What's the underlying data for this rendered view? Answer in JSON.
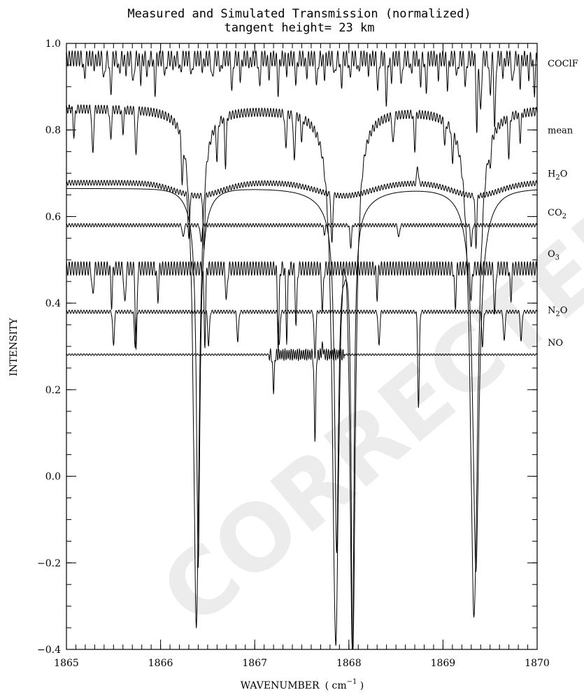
{
  "chart_data": {
    "type": "line",
    "title": "Measured and Simulated Transmission (normalized)",
    "subtitle": "tangent height= 23 km",
    "xlabel": "WAVENUMBER",
    "xlabel_unit_open": "( cm",
    "xlabel_unit_exp": "−1",
    "xlabel_unit_close": " )",
    "ylabel": "INTENSITY",
    "xlim": [
      1865,
      1870
    ],
    "ylim": [
      -0.4,
      1.0
    ],
    "x_ticks": [
      "1865",
      "1866",
      "1867",
      "1868",
      "1869",
      "1870"
    ],
    "y_ticks": [
      "−0.4",
      "−0.2",
      "0.0",
      "0.2",
      "0.4",
      "0.6",
      "0.8",
      "1.0"
    ],
    "grid": false,
    "legend": "labels at right end of each trace",
    "watermark": "CORRECTED PROOF",
    "series": [
      {
        "name": "COClF",
        "label_parts": [
          "COClF"
        ],
        "baseline": 0.965,
        "lines": [
          [
            1865.19,
            0.92
          ],
          [
            1865.3,
            0.95
          ],
          [
            1865.4,
            0.91
          ],
          [
            1865.47,
            0.88
          ],
          [
            1865.56,
            0.93
          ],
          [
            1865.63,
            0.94
          ],
          [
            1865.71,
            0.9
          ],
          [
            1865.79,
            0.92
          ],
          [
            1865.86,
            0.93
          ],
          [
            1865.94,
            0.89
          ],
          [
            1866.05,
            0.92
          ],
          [
            1866.14,
            0.95
          ],
          [
            1866.21,
            0.93
          ],
          [
            1866.33,
            0.92
          ],
          [
            1866.45,
            0.94
          ],
          [
            1866.55,
            0.91
          ],
          [
            1866.64,
            0.93
          ],
          [
            1866.76,
            0.89
          ],
          [
            1866.85,
            0.92
          ],
          [
            1866.95,
            0.95
          ],
          [
            1867.05,
            0.9
          ],
          [
            1867.15,
            0.93
          ],
          [
            1867.25,
            0.89
          ],
          [
            1867.34,
            0.94
          ],
          [
            1867.44,
            0.91
          ],
          [
            1867.55,
            0.93
          ],
          [
            1867.66,
            0.9
          ],
          [
            1867.74,
            0.93
          ],
          [
            1867.85,
            0.92
          ],
          [
            1867.92,
            0.9
          ],
          [
            1868.01,
            0.92
          ],
          [
            1868.1,
            0.93
          ],
          [
            1868.21,
            0.94
          ],
          [
            1868.31,
            0.89
          ],
          [
            1868.4,
            0.86
          ],
          [
            1868.45,
            0.92
          ],
          [
            1868.56,
            0.9
          ],
          [
            1868.66,
            0.93
          ],
          [
            1868.76,
            0.91
          ],
          [
            1868.82,
            0.89
          ],
          [
            1868.95,
            0.93
          ],
          [
            1869.05,
            0.9
          ],
          [
            1869.15,
            0.92
          ],
          [
            1869.24,
            0.9
          ],
          [
            1869.36,
            0.8
          ],
          [
            1869.4,
            0.83
          ],
          [
            1869.5,
            0.88
          ],
          [
            1869.55,
            0.8
          ],
          [
            1869.64,
            0.93
          ],
          [
            1869.74,
            0.9
          ],
          [
            1869.82,
            0.91
          ],
          [
            1869.91,
            0.93
          ],
          [
            1869.97,
            0.89
          ]
        ],
        "wiggle": 0.018
      },
      {
        "name": "mean",
        "label_parts": [
          "mean"
        ],
        "baseline": 0.85,
        "lines": [
          [
            1865.08,
            0.79
          ],
          [
            1865.28,
            0.74
          ],
          [
            1865.47,
            0.78
          ],
          [
            1865.6,
            0.8
          ],
          [
            1865.74,
            0.74
          ],
          [
            1866.23,
            0.75
          ],
          [
            1866.6,
            0.77
          ],
          [
            1866.69,
            0.74
          ],
          [
            1867.33,
            0.77
          ],
          [
            1867.42,
            0.74
          ],
          [
            1867.5,
            0.8
          ],
          [
            1868.47,
            0.78
          ],
          [
            1868.7,
            0.77
          ],
          [
            1869.02,
            0.8
          ],
          [
            1869.1,
            0.78
          ],
          [
            1869.5,
            0.8
          ],
          [
            1869.7,
            0.76
          ],
          [
            1869.82,
            0.79
          ]
        ],
        "wide": [
          [
            1866.38,
            -0.34,
            0.11
          ],
          [
            1867.86,
            -0.34,
            0.12
          ],
          [
            1868.04,
            -0.37,
            0.1
          ],
          [
            1869.33,
            -0.32,
            0.14
          ]
        ],
        "wiggle": 0.01
      },
      {
        "name": "H2O",
        "label_parts": [
          "H",
          "2",
          "O"
        ],
        "baseline": 0.678,
        "lines": [
          [
            1866.3,
            0.57
          ],
          [
            1866.46,
            0.55
          ],
          [
            1867.82,
            0.56
          ],
          [
            1868.73,
            0.72
          ],
          [
            1869.35,
            0.56
          ]
        ],
        "slope_lines": true,
        "wiggle": 0.006
      },
      {
        "name": "CO2",
        "label_parts": [
          "CO",
          "2",
          ""
        ],
        "baseline": 0.665,
        "wide": [
          [
            1866.4,
            -0.09,
            0.06
          ],
          [
            1867.87,
            -0.09,
            0.07
          ],
          [
            1868.04,
            -0.36,
            0.05
          ],
          [
            1869.35,
            -0.1,
            0.11
          ]
        ],
        "co2": true,
        "wiggle": 0.0
      },
      {
        "name": "O3",
        "label_parts": [
          "O",
          "3",
          ""
        ],
        "baseline": 0.58,
        "lines": [
          [
            1866.24,
            0.55
          ],
          [
            1866.43,
            0.54
          ],
          [
            1867.74,
            0.56
          ],
          [
            1868.02,
            0.53
          ],
          [
            1868.53,
            0.55
          ],
          [
            1869.3,
            0.53
          ]
        ],
        "wiggle": 0.004
      },
      {
        "name": "N2O",
        "label_parts": [
          "N",
          "2",
          "O"
        ],
        "baseline": 0.48,
        "lines": [
          [
            1865.28,
            0.41
          ],
          [
            1865.48,
            0.4
          ],
          [
            1865.62,
            0.39
          ],
          [
            1865.74,
            0.28
          ],
          [
            1865.97,
            0.41
          ],
          [
            1866.47,
            0.31
          ],
          [
            1866.7,
            0.4
          ],
          [
            1867.25,
            0.3
          ],
          [
            1867.34,
            0.32
          ],
          [
            1867.44,
            0.35
          ],
          [
            1867.72,
            0.38
          ],
          [
            1868.3,
            0.42
          ],
          [
            1869.13,
            0.39
          ],
          [
            1869.3,
            0.41
          ],
          [
            1869.55,
            0.37
          ],
          [
            1869.72,
            0.41
          ]
        ],
        "wiggle": 0.016
      },
      {
        "name": "NO",
        "label_parts": [
          "NO"
        ],
        "baseline": 0.38,
        "lines": [
          [
            1865.5,
            0.3
          ],
          [
            1865.73,
            0.3
          ],
          [
            1866.51,
            0.3
          ],
          [
            1866.82,
            0.31
          ],
          [
            1867.26,
            0.3
          ],
          [
            1867.64,
            0.27
          ],
          [
            1868.32,
            0.3
          ],
          [
            1868.74,
            0.16
          ],
          [
            1869.42,
            0.3
          ],
          [
            1869.65,
            0.31
          ],
          [
            1869.83,
            0.31
          ]
        ],
        "wiggle": 0.004
      },
      {
        "name": "NO-base",
        "label_parts": [],
        "baseline": 0.281,
        "lines": [
          [
            1867.2,
            0.2
          ],
          [
            1867.64,
            0.09
          ],
          [
            1867.72,
            0.3
          ]
        ],
        "no_band": [
          1867.15,
          1867.95
        ],
        "wiggle": 0.002
      }
    ]
  }
}
